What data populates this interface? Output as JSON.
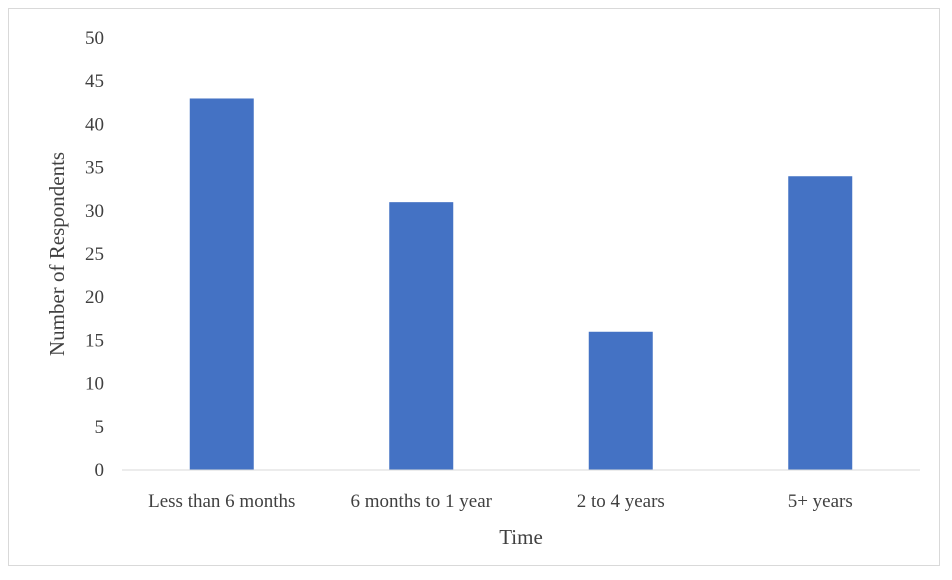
{
  "chart_data": {
    "type": "bar",
    "title": "",
    "xlabel": "Time",
    "ylabel": "Number of Respondents",
    "categories": [
      "Less than 6 months",
      "6 months to 1 year",
      "2 to 4 years",
      "5+ years"
    ],
    "values": [
      43,
      31,
      16,
      34
    ],
    "ylim": [
      0,
      50
    ],
    "yticks": [
      "0",
      "5",
      "10",
      "15",
      "20",
      "25",
      "30",
      "35",
      "40",
      "45",
      "50"
    ],
    "grid": false,
    "legend": "none",
    "colors": {
      "bar": "#4472c4",
      "axis": "#d9d9d9",
      "text": "#404040"
    }
  }
}
